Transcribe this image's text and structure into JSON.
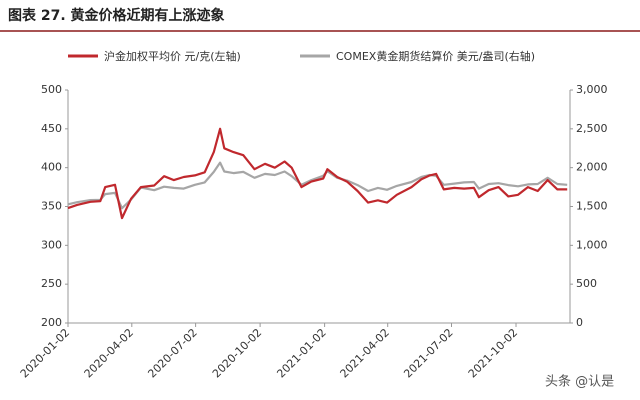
{
  "chart_data": {
    "type": "line",
    "title": "图表 27. 黄金价格近期有上涨迹象",
    "watermark": "头条 @认是",
    "x": [
      "2020-01-02",
      "2020-01-15",
      "2020-02-03",
      "2020-02-17",
      "2020-02-24",
      "2020-03-09",
      "2020-03-19",
      "2020-04-01",
      "2020-04-15",
      "2020-05-04",
      "2020-05-18",
      "2020-06-01",
      "2020-06-15",
      "2020-07-01",
      "2020-07-15",
      "2020-07-28",
      "2020-08-06",
      "2020-08-12",
      "2020-08-25",
      "2020-09-08",
      "2020-09-24",
      "2020-10-09",
      "2020-10-23",
      "2020-11-06",
      "2020-11-16",
      "2020-11-30",
      "2020-12-14",
      "2020-12-31",
      "2021-01-06",
      "2021-01-20",
      "2021-02-03",
      "2021-02-18",
      "2021-03-05",
      "2021-03-19",
      "2021-04-01",
      "2021-04-15",
      "2021-05-06",
      "2021-05-20",
      "2021-06-01",
      "2021-06-10",
      "2021-06-21",
      "2021-07-06",
      "2021-07-20",
      "2021-08-03",
      "2021-08-10",
      "2021-08-24",
      "2021-09-07",
      "2021-09-21",
      "2021-10-05",
      "2021-10-19",
      "2021-11-02",
      "2021-11-16",
      "2021-11-30",
      "2021-12-14"
    ],
    "series": [
      {
        "name": "沪金加权平均价 元/克(左轴)",
        "color": "#c0282d",
        "values": [
          348,
          352,
          356,
          357,
          375,
          378,
          335,
          360,
          375,
          377,
          389,
          384,
          388,
          390,
          394,
          420,
          450,
          425,
          420,
          416,
          398,
          405,
          400,
          408,
          400,
          375,
          382,
          386,
          398,
          388,
          382,
          370,
          355,
          358,
          355,
          365,
          375,
          385,
          390,
          392,
          372,
          374,
          373,
          374,
          362,
          371,
          375,
          363,
          365,
          375,
          370,
          384,
          372,
          372
        ]
      },
      {
        "name": "COMEX黄金期货结算价 美元/盎司(右轴)",
        "color": "#a6a6a6",
        "axis": "y2",
        "values": [
          1528,
          1555,
          1582,
          1585,
          1660,
          1675,
          1478,
          1590,
          1745,
          1710,
          1755,
          1740,
          1730,
          1780,
          1810,
          1945,
          2065,
          1950,
          1930,
          1945,
          1870,
          1920,
          1905,
          1950,
          1890,
          1780,
          1840,
          1895,
          1955,
          1870,
          1835,
          1775,
          1700,
          1740,
          1715,
          1765,
          1815,
          1880,
          1905,
          1895,
          1780,
          1795,
          1810,
          1815,
          1730,
          1790,
          1800,
          1775,
          1760,
          1785,
          1790,
          1870,
          1790,
          1780
        ]
      }
    ],
    "xlim": [
      "2020-01-02",
      "2021-12-18"
    ],
    "xticks": [
      "2020-01-02",
      "2020-04-02",
      "2020-07-02",
      "2020-10-02",
      "2021-01-02",
      "2021-04-02",
      "2021-07-02",
      "2021-10-02"
    ],
    "ylim": [
      200,
      500
    ],
    "yticks": [
      200,
      250,
      300,
      350,
      400,
      450,
      500
    ],
    "y2lim": [
      0,
      3000
    ],
    "y2ticks": [
      0,
      500,
      {
        "value": 1000,
        "label": "1,000"
      },
      {
        "value": 1500,
        "label": "1,500"
      },
      {
        "value": 2000,
        "label": "2,000"
      },
      {
        "value": 2500,
        "label": "2,500"
      },
      {
        "value": 3000,
        "label": "3,000"
      }
    ],
    "grid": false
  }
}
